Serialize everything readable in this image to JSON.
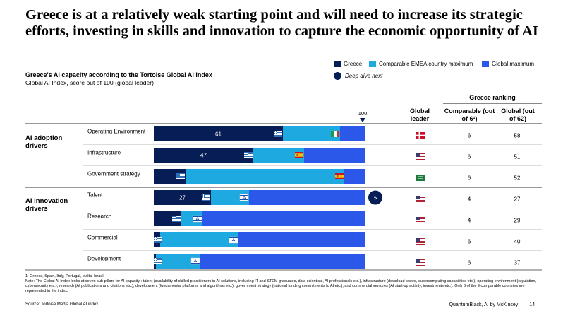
{
  "title": "Greece is at a relatively weak starting point and will need to increase its strategic efforts, investing in skills and innovation to capture the economic opportunity of AI",
  "subtitle": "Greece's AI capacity according to the Tortoise Global AI Index",
  "subsubtitle": "Global AI Index, score out of 100 (global leader)",
  "legend": {
    "greece": "Greece",
    "emea": "Comparable EMEA country maximum",
    "global": "Global maximum",
    "deep_dive": "Deep dive next"
  },
  "colors": {
    "greece": "#071D56",
    "emea": "#1FA9E1",
    "global": "#2B58E8"
  },
  "headers": {
    "greece_ranking": "Greece ranking",
    "global_leader": "Global leader",
    "comparable": "Comparable (out of 6¹)",
    "global": "Global (out of 62)",
    "max_marker": "100"
  },
  "groups": [
    "AI adoption drivers",
    "AI innovation drivers"
  ],
  "chart_data": {
    "type": "bar",
    "xlim": [
      0,
      100
    ],
    "categories": [
      "Operating Environment",
      "Infrastructure",
      "Government strategy",
      "Talent",
      "Research",
      "Commercial",
      "Development"
    ],
    "series": [
      {
        "name": "Greece",
        "values": [
          61,
          47,
          15,
          27,
          13,
          3,
          1
        ]
      },
      {
        "name": "Comparable EMEA country maximum",
        "values": [
          88,
          71,
          90,
          45,
          23,
          40,
          22
        ]
      },
      {
        "name": "Global maximum",
        "values": [
          100,
          100,
          100,
          100,
          100,
          100,
          100
        ]
      }
    ],
    "greece_labels": [
      "61",
      "47",
      "15",
      "27",
      "13",
      "",
      ""
    ],
    "emea_flag": [
      "italy",
      "spain",
      "spain",
      "israel",
      "israel",
      "israel",
      "israel"
    ],
    "global_leader": [
      "denmark",
      "usa",
      "saudi-arabia",
      "usa",
      "usa",
      "usa",
      "usa"
    ],
    "rank_comparable": [
      "6",
      "6",
      "6",
      "4",
      "4",
      "6",
      "6"
    ],
    "rank_global": [
      "58",
      "51",
      "52",
      "27",
      "29",
      "40",
      "37"
    ],
    "deep_dive_row": "Talent"
  },
  "footnotes": [
    "1.   Greece, Spain, Italy, Portugal, Malta, Israel",
    "Note: The Global AI Index looks at seven sub-pillars for AI capacity : talent (availability of skilled practitioners in AI solutions, including IT and STEM graduates, data scientists, AI professionals etc.), infrastructure (download speed, supercomputing capabilities etc.), operating environment (regulation, cybersecurity etc.), research (AI publications and citations etc.), development (fundamental platforms and algorithms etc.), government strategy (national funding commitments to AI etc.), and commercial ventures (AI start-up activity, investments etc.). Only 6 of the 9 comparable countries are represented in the index.",
    "Source: Tortoise Media Global AI index"
  ],
  "brand": "QuantumBlack, AI by McKinsey",
  "page_number": "14"
}
